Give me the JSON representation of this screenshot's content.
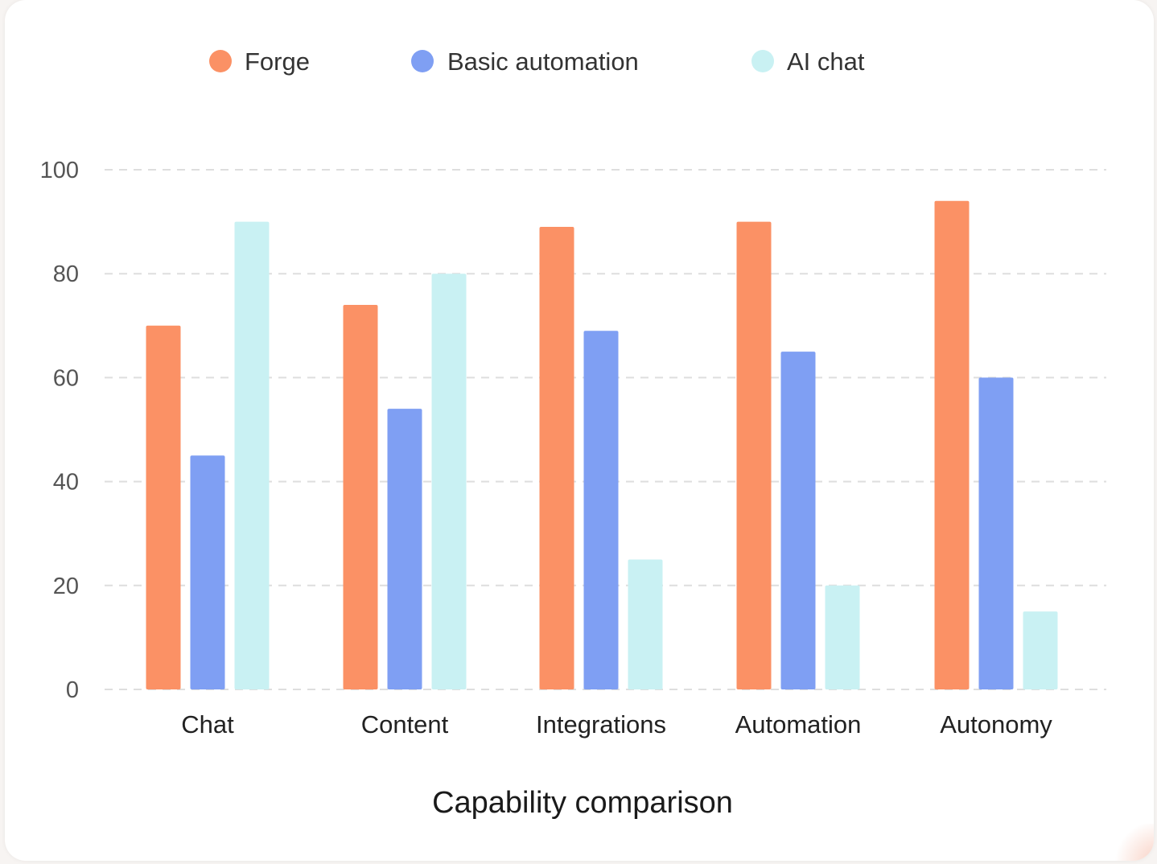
{
  "chart_data": {
    "type": "bar",
    "title": "Capability comparison",
    "xlabel": "",
    "ylabel": "",
    "ylim": [
      0,
      100
    ],
    "yticks": [
      "0",
      "20",
      "40",
      "60",
      "80",
      "100"
    ],
    "ytick_values": [
      0,
      20,
      40,
      60,
      80,
      100
    ],
    "grid": true,
    "legend_position": "top",
    "categories": [
      "Chat",
      "Content",
      "Integrations",
      "Automation",
      "Autonomy"
    ],
    "series": [
      {
        "name": "Forge",
        "color": "#fb9165",
        "values": [
          70,
          74,
          89,
          90,
          94
        ]
      },
      {
        "name": "Basic automation",
        "color": "#7f9ff3",
        "values": [
          45,
          54,
          69,
          65,
          60
        ]
      },
      {
        "name": "AI chat",
        "color": "#c9f1f3",
        "values": [
          90,
          80,
          25,
          20,
          15
        ]
      }
    ]
  }
}
